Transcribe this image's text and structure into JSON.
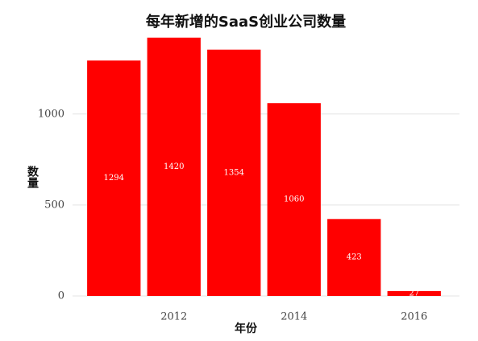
{
  "chart_data": {
    "type": "bar",
    "title": "每年新增的SaaS创业公司数量",
    "categories": [
      null,
      "2012",
      null,
      "2014",
      null,
      "2016"
    ],
    "values": [
      1294,
      1420,
      1354,
      1060,
      423,
      27
    ],
    "color": "#ff0000",
    "xlabel": "年份",
    "ylabel": "数量",
    "ylim": [
      0,
      1450
    ],
    "yticks": [
      0,
      500,
      1000
    ],
    "grid": true
  }
}
